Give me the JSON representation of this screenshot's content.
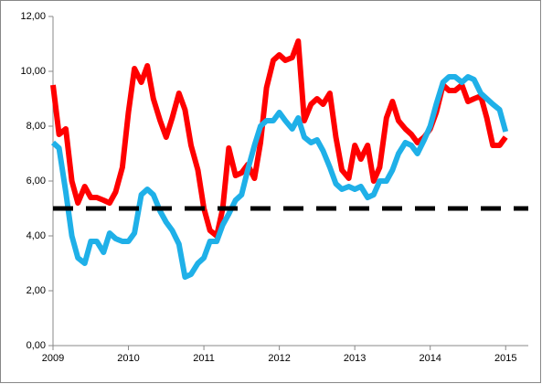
{
  "chart_data": {
    "type": "line",
    "x": [
      2009.0,
      2009.08,
      2009.17,
      2009.25,
      2009.33,
      2009.42,
      2009.5,
      2009.58,
      2009.67,
      2009.75,
      2009.83,
      2009.92,
      2010.0,
      2010.08,
      2010.17,
      2010.25,
      2010.33,
      2010.42,
      2010.5,
      2010.58,
      2010.67,
      2010.75,
      2010.83,
      2010.92,
      2011.0,
      2011.08,
      2011.17,
      2011.25,
      2011.33,
      2011.42,
      2011.5,
      2011.58,
      2011.67,
      2011.75,
      2011.83,
      2011.92,
      2012.0,
      2012.08,
      2012.17,
      2012.25,
      2012.33,
      2012.42,
      2012.5,
      2012.58,
      2012.67,
      2012.75,
      2012.83,
      2012.92,
      2013.0,
      2013.08,
      2013.17,
      2013.25,
      2013.33,
      2013.42,
      2013.5,
      2013.58,
      2013.67,
      2013.75,
      2013.83,
      2013.92,
      2014.0,
      2014.08,
      2014.17,
      2014.25,
      2014.33,
      2014.42,
      2014.5,
      2014.58,
      2014.67,
      2014.75,
      2014.83,
      2014.92,
      2015.0
    ],
    "series": [
      {
        "color": "#ff0000",
        "values": [
          9.5,
          7.7,
          7.9,
          6.0,
          5.2,
          5.8,
          5.4,
          5.4,
          5.3,
          5.2,
          5.6,
          6.5,
          8.5,
          10.1,
          9.6,
          10.2,
          9.0,
          8.2,
          7.6,
          8.3,
          9.2,
          8.6,
          7.3,
          6.4,
          5.0,
          4.2,
          4.0,
          5.0,
          7.2,
          6.2,
          6.3,
          6.6,
          6.1,
          7.4,
          9.4,
          10.4,
          10.6,
          10.4,
          10.5,
          11.1,
          8.2,
          8.8,
          9.0,
          8.8,
          9.2,
          7.6,
          6.4,
          6.1,
          7.3,
          6.8,
          7.3,
          6.0,
          6.5,
          8.3,
          8.9,
          8.2,
          7.9,
          7.7,
          7.4,
          7.6,
          7.9,
          8.5,
          9.5,
          9.3,
          9.3,
          9.5,
          8.9,
          9.0,
          9.1,
          8.3,
          7.3,
          7.3,
          7.6
        ]
      },
      {
        "color": "#1fb0e8",
        "values": [
          7.4,
          7.2,
          5.6,
          4.0,
          3.2,
          3.0,
          3.8,
          3.8,
          3.4,
          4.1,
          3.9,
          3.8,
          3.8,
          4.1,
          5.5,
          5.7,
          5.5,
          4.9,
          4.5,
          4.2,
          3.7,
          2.5,
          2.6,
          3.0,
          3.2,
          3.8,
          3.8,
          4.4,
          4.8,
          5.3,
          5.5,
          6.4,
          7.3,
          8.0,
          8.2,
          8.2,
          8.5,
          8.2,
          7.9,
          8.3,
          7.6,
          7.4,
          7.5,
          7.1,
          6.5,
          5.9,
          5.7,
          5.8,
          5.7,
          5.8,
          5.4,
          5.5,
          6.0,
          6.0,
          6.4,
          7.0,
          7.4,
          7.3,
          7.0,
          7.5,
          8.0,
          8.8,
          9.6,
          9.8,
          9.8,
          9.6,
          9.8,
          9.7,
          9.2,
          9.0,
          8.8,
          8.6,
          7.8
        ]
      }
    ],
    "reference_line": {
      "value": 5,
      "color": "#000000"
    },
    "xlim": [
      2009,
      2015.3
    ],
    "xticks": [
      2009,
      2010,
      2011,
      2012,
      2013,
      2014,
      2015
    ],
    "ylim": [
      0,
      12
    ],
    "yticks": [
      {
        "value": 0,
        "label": "0,00"
      },
      {
        "value": 2,
        "label": "2,00"
      },
      {
        "value": 4,
        "label": "4,00"
      },
      {
        "value": 6,
        "label": "6,00"
      },
      {
        "value": 8,
        "label": "8,00"
      },
      {
        "value": 10,
        "label": "10,00"
      },
      {
        "value": 12,
        "label": "12,00"
      }
    ]
  }
}
